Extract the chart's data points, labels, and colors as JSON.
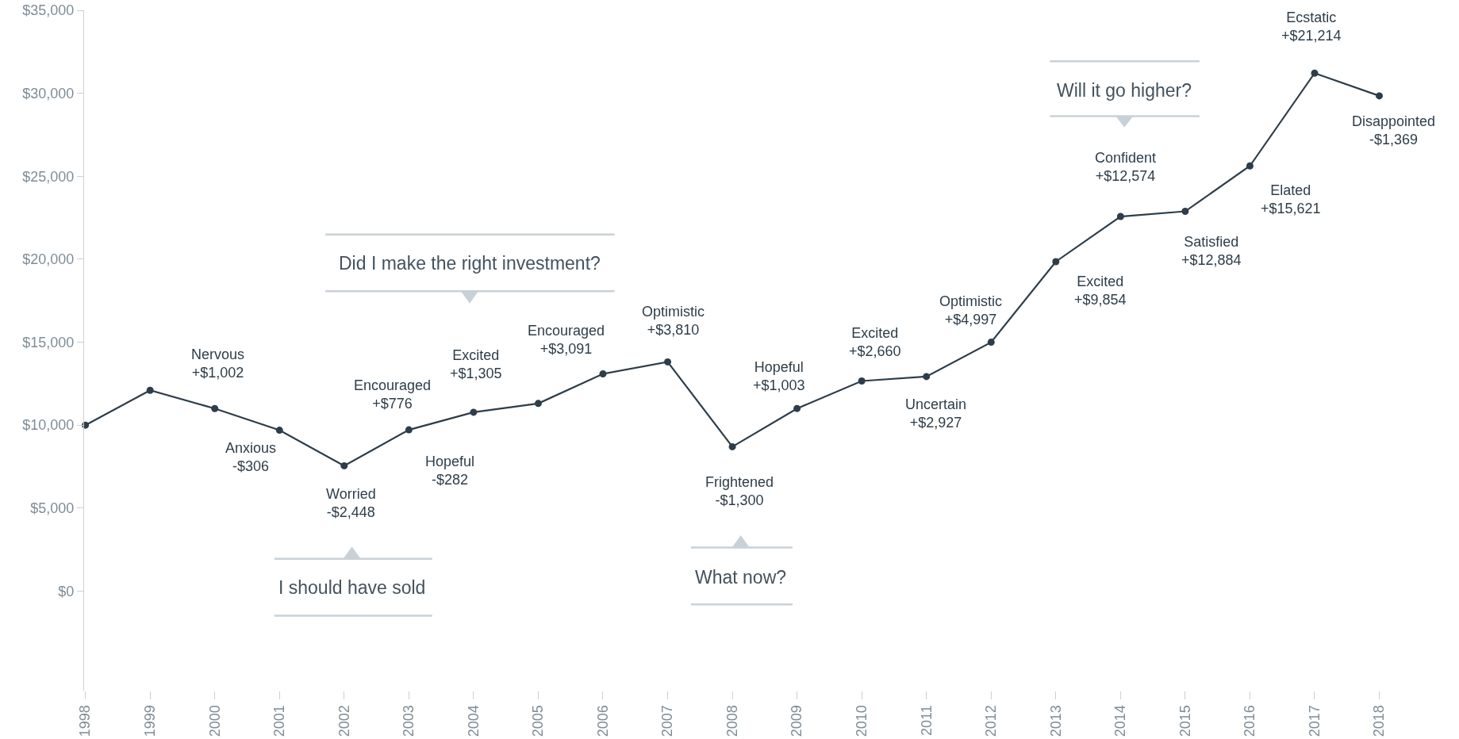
{
  "chart_data": {
    "type": "line",
    "categories": [
      "1998",
      "1999",
      "2000",
      "2001",
      "2002",
      "2003",
      "2004",
      "2005",
      "2006",
      "2007",
      "2008",
      "2009",
      "2010",
      "2011",
      "2012",
      "2013",
      "2014",
      "2015",
      "2016",
      "2017",
      "2018"
    ],
    "series": [
      {
        "color": "#2e3d49",
        "values": [
          10000,
          12100,
          11002,
          9694,
          7552,
          9718,
          10776,
          11305,
          13091,
          13810,
          8700,
          11003,
          12660,
          12927,
          14997,
          19854,
          22574,
          22884,
          25621,
          31214,
          29845
        ]
      }
    ],
    "ylim": [
      -6000,
      35000
    ],
    "yticks": [
      {
        "value": 0,
        "label": "$0"
      },
      {
        "value": 5000,
        "label": "$5,000"
      },
      {
        "value": 10000,
        "label": "$10,000"
      },
      {
        "value": 15000,
        "label": "$15,000"
      },
      {
        "value": 20000,
        "label": "$20,000"
      },
      {
        "value": 25000,
        "label": "$25,000"
      },
      {
        "value": 30000,
        "label": "$30,000"
      },
      {
        "value": 35000,
        "label": "$35,000"
      }
    ],
    "grid": false,
    "legend": false,
    "marker": "circle",
    "line_style": "solid",
    "annotations": [
      {
        "text": "Nervous\n+$1,002",
        "x": "2000",
        "y": 11002
      },
      {
        "text": "Anxious\n-$306",
        "x": "2001",
        "y": 9694
      },
      {
        "text": "Worried\n-$2,448",
        "x": "2002",
        "y": 7552
      },
      {
        "text": "Hopeful\n-$282",
        "x": "2003",
        "y": 9718
      },
      {
        "text": "Encouraged\n+$776",
        "x": "2004",
        "y": 10776
      },
      {
        "text": "Excited\n+$1,305",
        "x": "2005",
        "y": 11305
      },
      {
        "text": "Encouraged\n+$3,091",
        "x": "2006",
        "y": 13091
      },
      {
        "text": "Optimistic\n+$3,810",
        "x": "2007",
        "y": 13810
      },
      {
        "text": "Frightened\n-$1,300",
        "x": "2008",
        "y": 8700
      },
      {
        "text": "Hopeful\n+$1,003",
        "x": "2009",
        "y": 11003
      },
      {
        "text": "Excited\n+$2,660",
        "x": "2010",
        "y": 12660
      },
      {
        "text": "Uncertain\n+$2,927",
        "x": "2011",
        "y": 12927
      },
      {
        "text": "Optimistic\n+$4,997",
        "x": "2012",
        "y": 14997
      },
      {
        "text": "Excited\n+$9,854",
        "x": "2013",
        "y": 19854
      },
      {
        "text": "Confident\n+$12,574",
        "x": "2014",
        "y": 22574
      },
      {
        "text": "Satisfied\n+$12,884",
        "x": "2015",
        "y": 22884
      },
      {
        "text": "Elated\n+$15,621",
        "x": "2016",
        "y": 25621
      },
      {
        "text": "Ecstatic\n+$21,214",
        "x": "2017",
        "y": 31214
      },
      {
        "text": "Disappointed\n-$1,369",
        "x": "2018",
        "y": 29845
      },
      "Did I make the right investment?",
      "I should have sold",
      "What now?",
      "Will it go higher?"
    ]
  }
}
